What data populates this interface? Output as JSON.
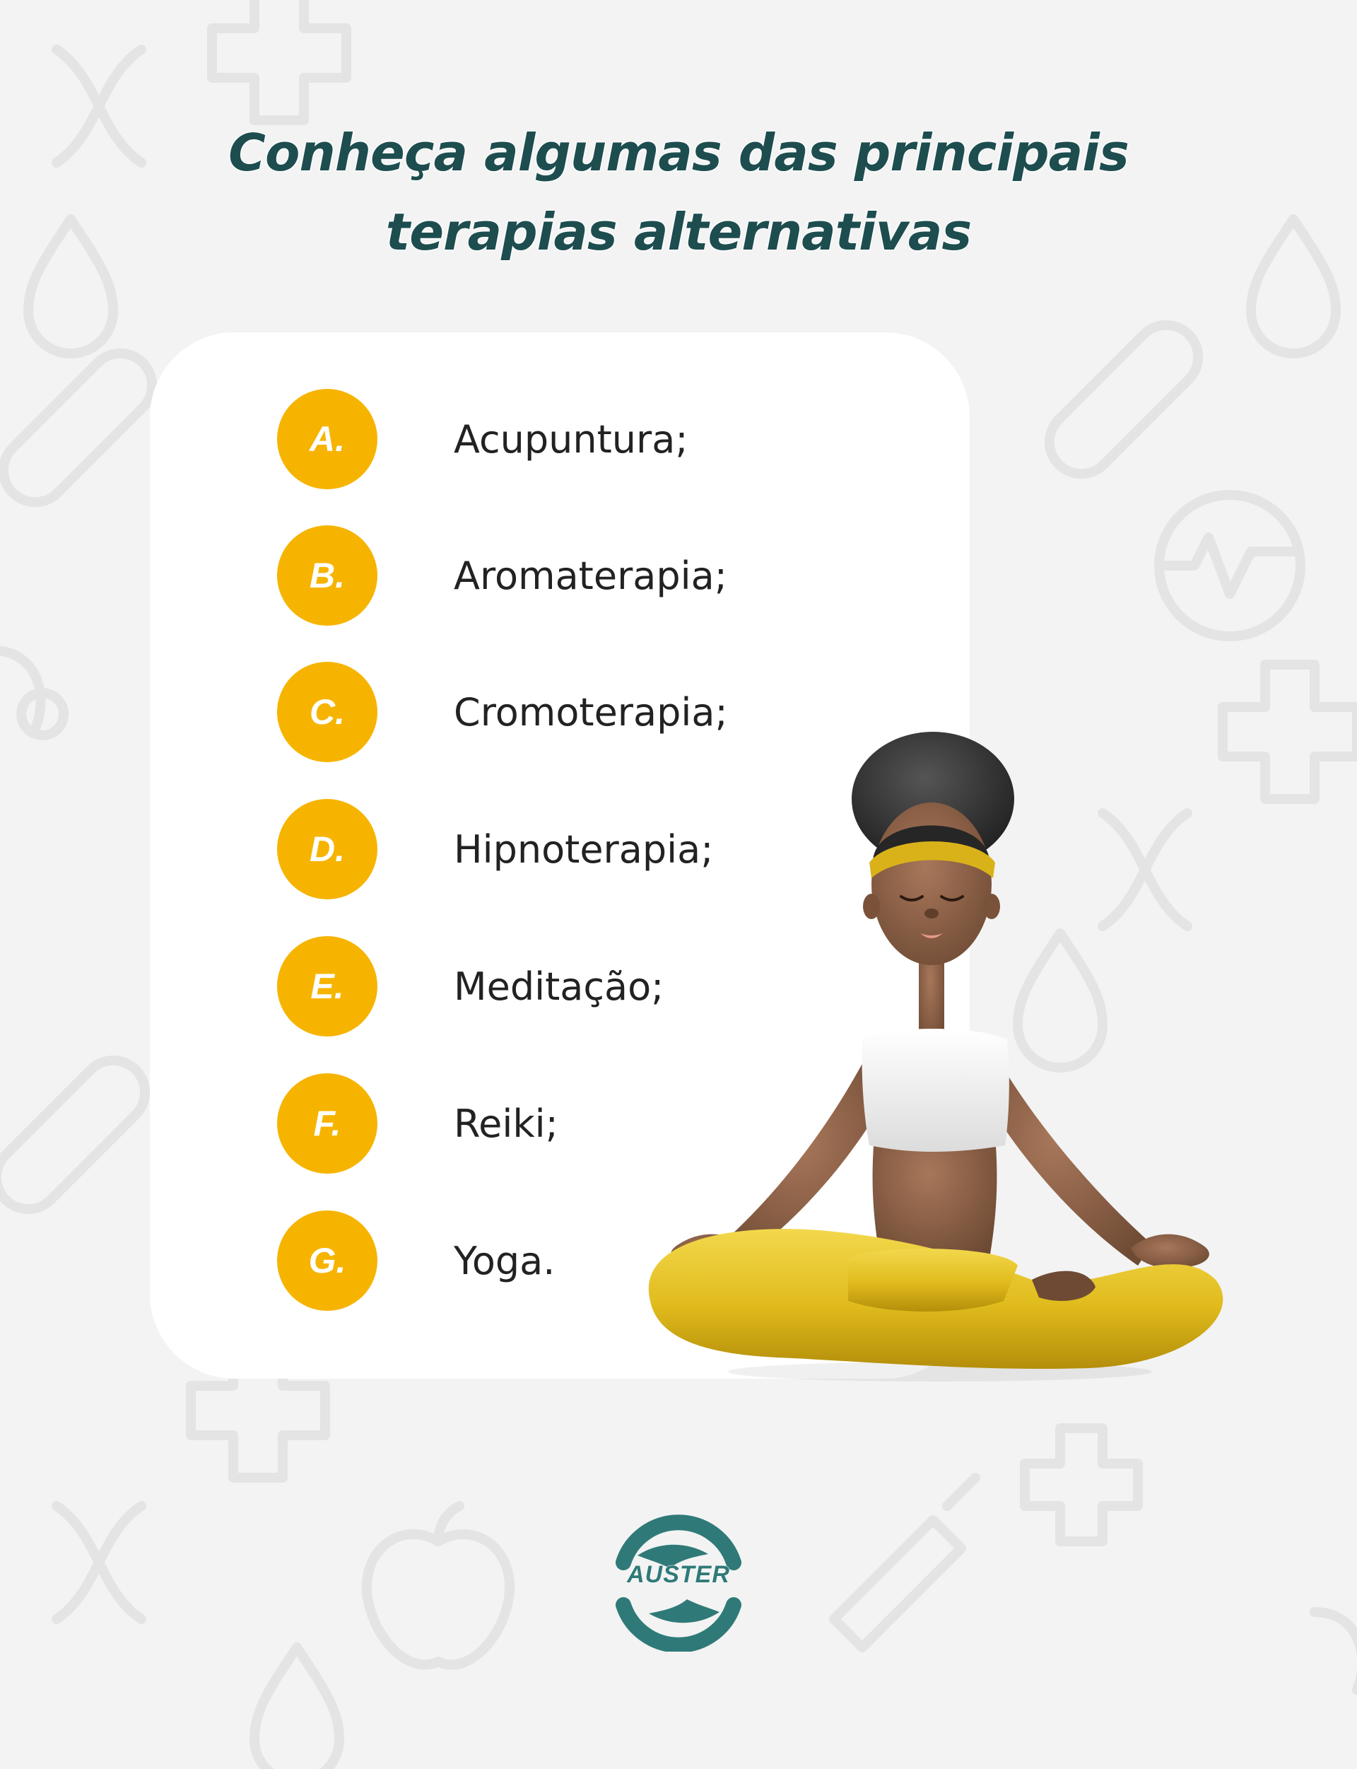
{
  "header": {
    "title_line1": "Conheça algumas das principais",
    "title_line2": "terapias alternativas"
  },
  "therapies": [
    {
      "letter": "A.",
      "name": "Acupuntura;"
    },
    {
      "letter": "B.",
      "name": "Aromaterapia;"
    },
    {
      "letter": "C.",
      "name": "Cromoterapia;"
    },
    {
      "letter": "D.",
      "name": "Hipnoterapia;"
    },
    {
      "letter": "E.",
      "name": "Meditação;"
    },
    {
      "letter": "F.",
      "name": "Reiki;"
    },
    {
      "letter": "G.",
      "name": "Yoga."
    }
  ],
  "logo": {
    "text": "AUSTER"
  },
  "colors": {
    "title": "#1d4d4f",
    "badge": "#f6b400",
    "logo": "#2f7a78",
    "background": "#f3f3f3",
    "card": "#ffffff"
  },
  "icons": {
    "background_pattern": [
      "medical-cross-icon",
      "dna-icon",
      "drop-icon",
      "stethoscope-icon",
      "pill-icon",
      "heartbeat-icon",
      "apple-icon",
      "syringe-icon"
    ],
    "illustration": "meditating-woman-illustration",
    "logo": "auster-hands-logo"
  }
}
